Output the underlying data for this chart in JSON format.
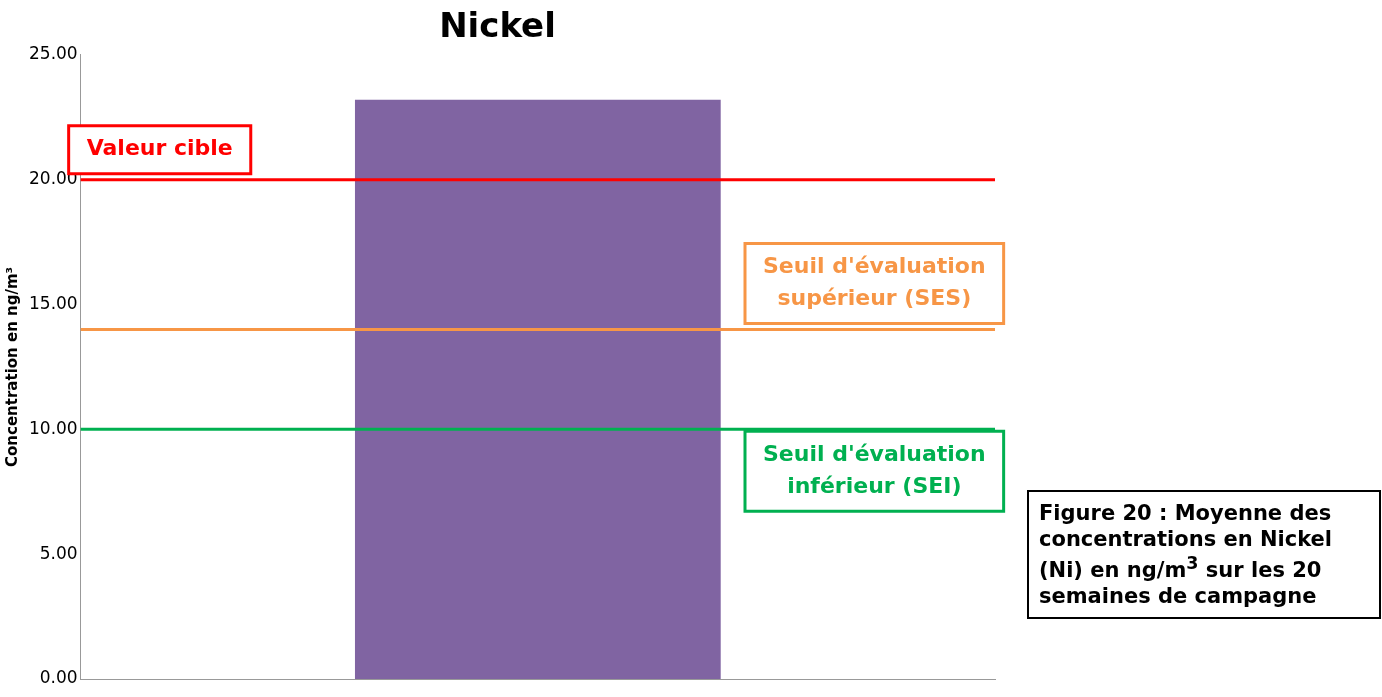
{
  "chart_data": {
    "type": "bar",
    "title": "Nickel",
    "ylabel": "Concentration en ng/m³",
    "categories": [
      null
    ],
    "values": [
      23.2
    ],
    "color": "#8064a2",
    "ylim": [
      0,
      25
    ],
    "yticks": [
      {
        "value": 0,
        "label": "0.00"
      },
      {
        "value": 5,
        "label": "5.00"
      },
      {
        "value": 10,
        "label": "10.00"
      },
      {
        "value": 15,
        "label": "15.00"
      },
      {
        "value": 20,
        "label": "20.00"
      },
      {
        "value": 25,
        "label": "25.00"
      }
    ],
    "grid": false,
    "legend": false,
    "ref_lines": [
      {
        "axis": "y",
        "value": 20,
        "label": "Valeur cible",
        "color": "#ff0000"
      },
      {
        "axis": "y",
        "value": 14,
        "label": "Seuil d'évaluation supérieur (SES)",
        "color": "#f79646"
      },
      {
        "axis": "y",
        "value": 10,
        "label": "Seuil d'évaluation inférieur (SEI)",
        "color": "#00b050"
      }
    ],
    "annotations": [
      "Figure 20 : Moyenne des concentrations en Nickel (Ni) en ng/m$^{3}$ sur les 20 semaines de campagne"
    ]
  }
}
